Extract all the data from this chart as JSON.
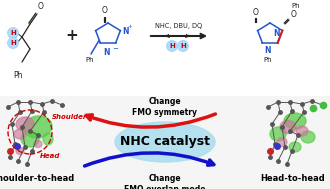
{
  "bg_color": "#ffffff",
  "reaction_arrow_text": "NHC, DBU, DQ",
  "nhc_catalyst_text": "NHC catalyst",
  "change_fmo_symmetry": "Change\nFMO symmetry",
  "change_fmo_overlap": "Change\nFMO overlap mode",
  "shoulder_to_head": "Shoulder-to-head",
  "head_to_head": "Head-to-head",
  "shoulder_label": "Shoulder",
  "head_label": "Head",
  "ellipse_color": "#aaddee",
  "ellipse_alpha": 0.85,
  "arrow_red_color": "#dd1111",
  "arrow_blue_color": "#1111cc",
  "green_blob_color": "#55cc44",
  "pink_blob_color": "#cc7799",
  "dashed_circle_color": "#cc0000",
  "h_circle_color_cyan": "#aaddff",
  "h_text_color_red": "#cc0000",
  "label_color_blue": "#2255cc",
  "label_color_black": "#111111",
  "label_color_red": "#cc0000",
  "bond_color": "#222222"
}
